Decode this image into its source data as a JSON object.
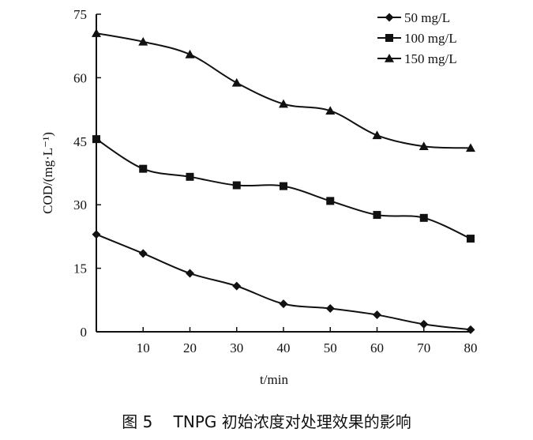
{
  "chart_data": {
    "type": "line",
    "xlabel": "t/min",
    "ylabel": "COD/(mg·L⁻¹)",
    "xlim": [
      0,
      80
    ],
    "ylim": [
      0,
      75
    ],
    "x_ticks": [
      10,
      20,
      30,
      40,
      50,
      60,
      70,
      80
    ],
    "y_ticks": [
      0,
      15,
      30,
      45,
      60,
      75
    ],
    "grid": false,
    "legend_position": "top-right",
    "x": [
      0,
      10,
      20,
      30,
      40,
      50,
      60,
      70,
      80
    ],
    "series": [
      {
        "name": "50 mg/L",
        "marker": "diamond",
        "values": [
          23,
          18.5,
          13.8,
          10.8,
          6.6,
          5.5,
          4.0,
          1.8,
          0.5
        ]
      },
      {
        "name": "100 mg/L",
        "marker": "square",
        "values": [
          45.5,
          38.5,
          36.6,
          34.6,
          34.4,
          30.9,
          27.6,
          26.9,
          22.0
        ]
      },
      {
        "name": "150 mg/L",
        "marker": "triangle",
        "values": [
          70.5,
          68.5,
          65.5,
          58.8,
          53.8,
          52.2,
          46.4,
          43.8,
          43.4
        ]
      }
    ]
  },
  "caption": "图 5　 TNPG 初始浓度对处理效果的影响"
}
